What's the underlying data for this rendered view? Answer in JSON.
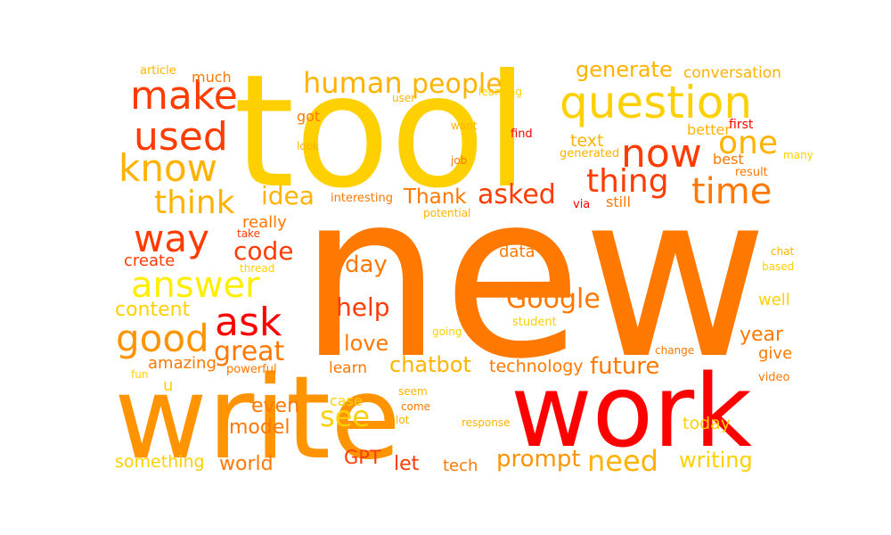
{
  "palette": {
    "red": "#ff0000",
    "orange_red": "#ff3c00",
    "orange": "#ff7800",
    "amber": "#ff9400",
    "gold": "#ffb300",
    "yellow_gold": "#ffd000",
    "yellow": "#ffee00"
  },
  "words": [
    {
      "text": "new",
      "color": "orange"
    },
    {
      "text": "tool",
      "color": "yellow_gold"
    },
    {
      "text": "write",
      "color": "amber"
    },
    {
      "text": "work",
      "color": "red"
    },
    {
      "text": "question",
      "color": "yellow_gold"
    },
    {
      "text": "make",
      "color": "orange_red"
    },
    {
      "text": "now",
      "color": "orange_red"
    },
    {
      "text": "used",
      "color": "orange_red"
    },
    {
      "text": "know",
      "color": "gold"
    },
    {
      "text": "one",
      "color": "gold"
    },
    {
      "text": "time",
      "color": "orange"
    },
    {
      "text": "thing",
      "color": "orange_red"
    },
    {
      "text": "human",
      "color": "gold"
    },
    {
      "text": "people",
      "color": "gold"
    },
    {
      "text": "generate",
      "color": "gold"
    },
    {
      "text": "conversation",
      "color": "gold"
    },
    {
      "text": "think",
      "color": "gold"
    },
    {
      "text": "idea",
      "color": "gold"
    },
    {
      "text": "Thank",
      "color": "orange"
    },
    {
      "text": "asked",
      "color": "orange_red"
    },
    {
      "text": "way",
      "color": "orange_red"
    },
    {
      "text": "code",
      "color": "orange_red"
    },
    {
      "text": "answer",
      "color": "yellow"
    },
    {
      "text": "ask",
      "color": "red"
    },
    {
      "text": "Google",
      "color": "orange"
    },
    {
      "text": "content",
      "color": "yellow_gold"
    },
    {
      "text": "good",
      "color": "amber"
    },
    {
      "text": "great",
      "color": "orange"
    },
    {
      "text": "help",
      "color": "orange_red"
    },
    {
      "text": "day",
      "color": "orange"
    },
    {
      "text": "love",
      "color": "orange"
    },
    {
      "text": "chatbot",
      "color": "gold"
    },
    {
      "text": "technology",
      "color": "orange"
    },
    {
      "text": "future",
      "color": "orange"
    },
    {
      "text": "year",
      "color": "orange"
    },
    {
      "text": "see",
      "color": "yellow_gold"
    },
    {
      "text": "even",
      "color": "orange"
    },
    {
      "text": "model",
      "color": "orange"
    },
    {
      "text": "need",
      "color": "gold"
    },
    {
      "text": "prompt",
      "color": "amber"
    },
    {
      "text": "world",
      "color": "orange"
    },
    {
      "text": "GPT",
      "color": "orange_red"
    },
    {
      "text": "let",
      "color": "orange_red"
    },
    {
      "text": "tech",
      "color": "orange"
    },
    {
      "text": "something",
      "color": "yellow_gold"
    },
    {
      "text": "writing",
      "color": "yellow_gold"
    },
    {
      "text": "amazing",
      "color": "orange"
    },
    {
      "text": "well",
      "color": "yellow_gold"
    },
    {
      "text": "give",
      "color": "orange"
    },
    {
      "text": "today",
      "color": "yellow_gold"
    },
    {
      "text": "data",
      "color": "orange"
    },
    {
      "text": "really",
      "color": "orange"
    },
    {
      "text": "create",
      "color": "orange_red"
    },
    {
      "text": "learn",
      "color": "orange"
    },
    {
      "text": "text",
      "color": "gold"
    },
    {
      "text": "best",
      "color": "orange"
    },
    {
      "text": "still",
      "color": "orange"
    },
    {
      "text": "better",
      "color": "gold"
    },
    {
      "text": "case",
      "color": "yellow_gold"
    },
    {
      "text": "got",
      "color": "orange"
    },
    {
      "text": "much",
      "color": "orange"
    },
    {
      "text": "article",
      "color": "gold"
    },
    {
      "text": "user",
      "color": "gold"
    },
    {
      "text": "learning",
      "color": "yellow_gold"
    },
    {
      "text": "look",
      "color": "gold"
    },
    {
      "text": "want",
      "color": "gold"
    },
    {
      "text": "find",
      "color": "red"
    },
    {
      "text": "job",
      "color": "orange"
    },
    {
      "text": "generated",
      "color": "gold"
    },
    {
      "text": "first",
      "color": "red"
    },
    {
      "text": "many",
      "color": "yellow_gold"
    },
    {
      "text": "result",
      "color": "orange"
    },
    {
      "text": "interesting",
      "color": "orange"
    },
    {
      "text": "potential",
      "color": "gold"
    },
    {
      "text": "via",
      "color": "red"
    },
    {
      "text": "take",
      "color": "orange_red"
    },
    {
      "text": "thread",
      "color": "yellow_gold"
    },
    {
      "text": "chat",
      "color": "gold"
    },
    {
      "text": "based",
      "color": "yellow_gold"
    },
    {
      "text": "student",
      "color": "yellow_gold"
    },
    {
      "text": "going",
      "color": "yellow_gold"
    },
    {
      "text": "change",
      "color": "orange"
    },
    {
      "text": "powerful",
      "color": "orange"
    },
    {
      "text": "fun",
      "color": "yellow_gold"
    },
    {
      "text": "u",
      "color": "yellow_gold"
    },
    {
      "text": "video",
      "color": "orange"
    },
    {
      "text": "seem",
      "color": "gold"
    },
    {
      "text": "come",
      "color": "orange"
    },
    {
      "text": "lot",
      "color": "gold"
    },
    {
      "text": "response",
      "color": "gold"
    }
  ]
}
